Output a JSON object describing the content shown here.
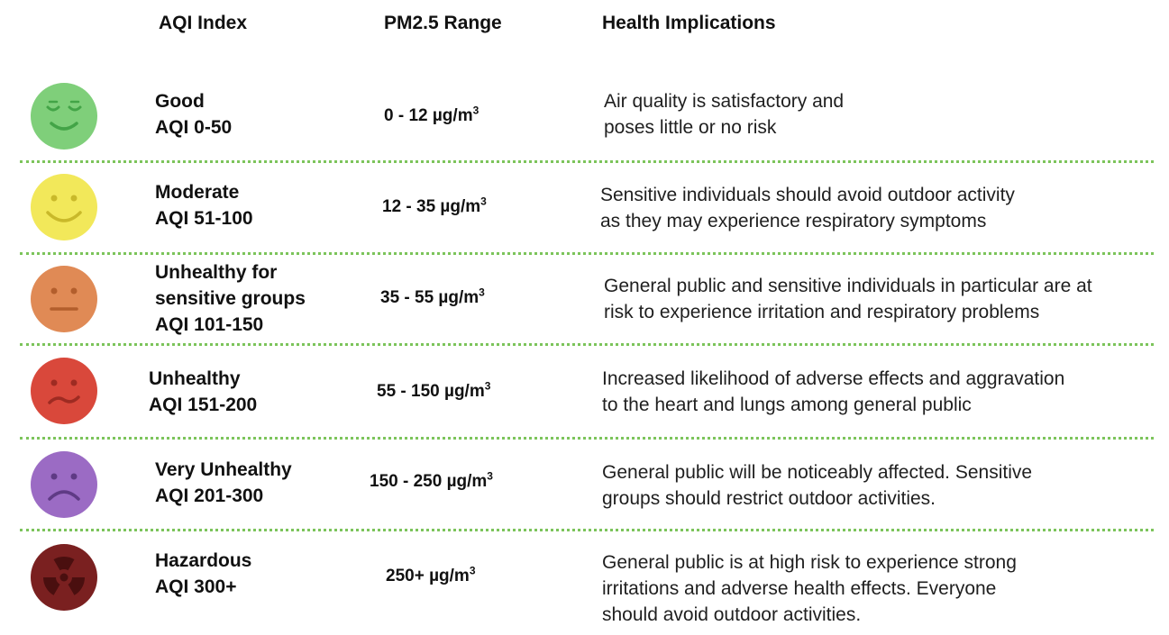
{
  "headers": {
    "aqi_index": "AQI Index",
    "pm_range": "PM2.5 Range",
    "health": "Health Implications"
  },
  "rows": [
    {
      "name": "Good",
      "aqi": "AQI 0-50",
      "range": "0 - 12  µg/m",
      "range_sup": "3",
      "health_lines": [
        "Air quality is satisfactory and",
        "poses little or no risk"
      ],
      "face": "content-face-icon",
      "color": "#7fcf7a"
    },
    {
      "name": "Moderate",
      "aqi": "AQI 51-100",
      "range": "12 - 35 µg/m",
      "range_sup": "3",
      "health_lines": [
        "Sensitive individuals should avoid outdoor activity",
        "as they may experience respiratory symptoms"
      ],
      "face": "smiling-face-icon",
      "color": "#f2e85a"
    },
    {
      "name_lines": [
        "Unhealthy for",
        "sensitive groups"
      ],
      "aqi": "AQI 101-150",
      "range": "35 - 55 µg/m",
      "range_sup": "3",
      "health_lines": [
        "General public and sensitive individuals in particular are at",
        "risk to experience irritation and respiratory problems"
      ],
      "face": "neutral-face-icon",
      "color": "#e08a55"
    },
    {
      "name": "Unhealthy",
      "aqi": "AQI 151-200",
      "range": "55 - 150 µg/m",
      "range_sup": "3",
      "health_lines": [
        "Increased likelihood of adverse effects and aggravation",
        "to the heart and lungs among general public"
      ],
      "face": "confused-face-icon",
      "color": "#d9483b"
    },
    {
      "name": "Very Unhealthy",
      "aqi": "AQI 201-300",
      "range": "150 - 250 µg/m",
      "range_sup": "3",
      "health_lines": [
        "General public will be noticeably affected. Sensitive",
        "groups should restrict outdoor activities."
      ],
      "face": "frowning-face-icon",
      "color": "#9b6bc4"
    },
    {
      "name": "Hazardous",
      "aqi": "AQI 300+",
      "range": "250+ µg/m",
      "range_sup": "3",
      "health_lines": [
        "General public is at high risk to experience strong",
        "irritations and adverse health effects. Everyone",
        "should avoid outdoor activities."
      ],
      "face": "radiation-icon",
      "color": "#7a2020"
    }
  ]
}
